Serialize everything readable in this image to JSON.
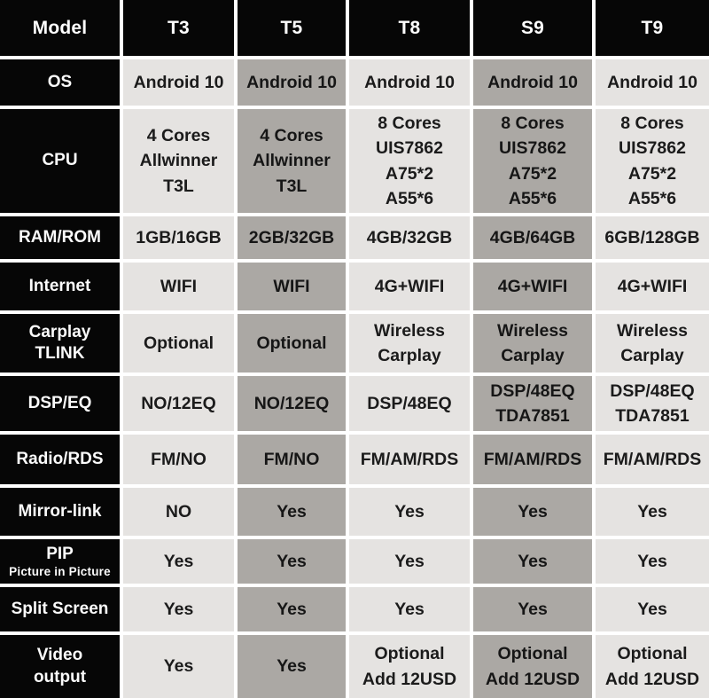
{
  "colors": {
    "header_bg": "#060606",
    "label_column_bg": "#060606",
    "light_cell_bg": "#e5e3e1",
    "dark_cell_bg": "#aba8a4",
    "grid_gap": "#ffffff",
    "header_text": "#ffffff",
    "cell_text": "#1b1b1b"
  },
  "table": {
    "header": {
      "label": "Model",
      "models": [
        "T3",
        "T5",
        "T8",
        "S9",
        "T9"
      ]
    },
    "rows": [
      {
        "label": "OS",
        "sublabel": null,
        "cells": [
          "Android 10",
          "Android 10",
          "Android 10",
          "Android 10",
          "Android 10"
        ]
      },
      {
        "label": "CPU",
        "sublabel": null,
        "cells": [
          "4 Cores\nAllwinner\nT3L",
          "4 Cores\nAllwinner\nT3L",
          "8 Cores\nUIS7862\nA75*2\nA55*6",
          "8 Cores\nUIS7862\nA75*2\nA55*6",
          "8 Cores\nUIS7862\nA75*2\nA55*6"
        ]
      },
      {
        "label": "RAM/ROM",
        "sublabel": null,
        "cells": [
          "1GB/16GB",
          "2GB/32GB",
          "4GB/32GB",
          "4GB/64GB",
          "6GB/128GB"
        ]
      },
      {
        "label": "Internet",
        "sublabel": null,
        "cells": [
          "WIFI",
          "WIFI",
          "4G+WIFI",
          "4G+WIFI",
          "4G+WIFI"
        ]
      },
      {
        "label": "Carplay\nTLINK",
        "sublabel": null,
        "cells": [
          "Optional",
          "Optional",
          "Wireless\nCarplay",
          "Wireless\nCarplay",
          "Wireless\nCarplay"
        ]
      },
      {
        "label": "DSP/EQ",
        "sublabel": null,
        "cells": [
          "NO/12EQ",
          "NO/12EQ",
          "DSP/48EQ",
          "DSP/48EQ\nTDA7851",
          "DSP/48EQ\nTDA7851"
        ]
      },
      {
        "label": "Radio/RDS",
        "sublabel": null,
        "cells": [
          "FM/NO",
          "FM/NO",
          "FM/AM/RDS",
          "FM/AM/RDS",
          "FM/AM/RDS"
        ]
      },
      {
        "label": "Mirror-link",
        "sublabel": null,
        "cells": [
          "NO",
          "Yes",
          "Yes",
          "Yes",
          "Yes"
        ]
      },
      {
        "label": "PIP",
        "sublabel": "Picture in Picture",
        "cells": [
          "Yes",
          "Yes",
          "Yes",
          "Yes",
          "Yes"
        ]
      },
      {
        "label": "Split Screen",
        "sublabel": null,
        "cells": [
          "Yes",
          "Yes",
          "Yes",
          "Yes",
          "Yes"
        ]
      },
      {
        "label": "Video\noutput",
        "sublabel": null,
        "cells": [
          "Yes",
          "Yes",
          "Optional\nAdd 12USD",
          "Optional\nAdd 12USD",
          "Optional\nAdd 12USD"
        ]
      }
    ]
  }
}
